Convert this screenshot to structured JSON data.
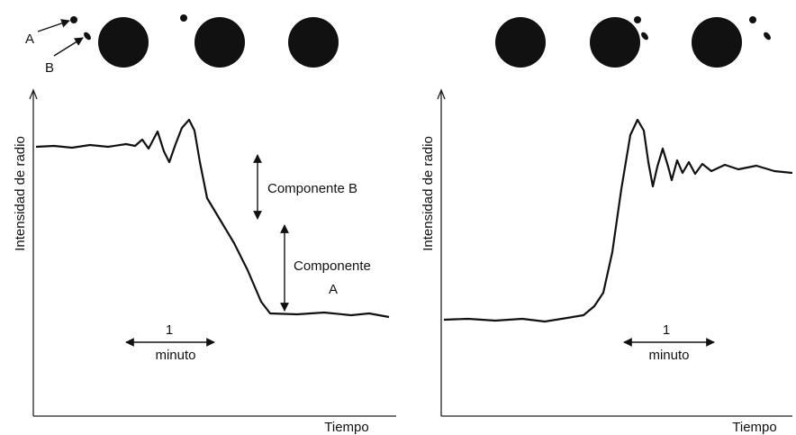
{
  "source_labels": {
    "a": "A",
    "b": "B"
  },
  "panels": [
    {
      "y_label": "Intensidad de radio",
      "x_label": "Tiempo",
      "scale_bar": {
        "number": "1",
        "unit": "minuto"
      },
      "annotations": [
        "Componente B",
        "Componente",
        "A"
      ]
    },
    {
      "y_label": "Intensidad de radio",
      "x_label": "Tiempo",
      "scale_bar": {
        "number": "1",
        "unit": "minuto"
      }
    }
  ]
}
